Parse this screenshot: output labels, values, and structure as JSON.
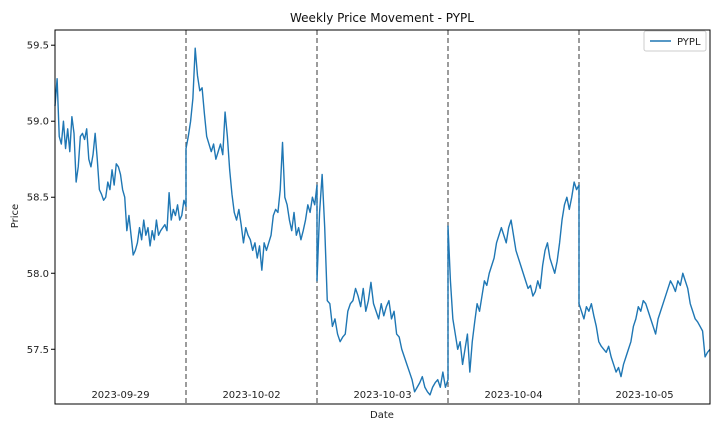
{
  "chart_data": {
    "type": "line",
    "title": "Weekly Price Movement - PYPL",
    "xlabel": "Date",
    "ylabel": "Price",
    "ylim": [
      57.14,
      59.6
    ],
    "y_ticks": [
      57.5,
      58.0,
      58.5,
      59.0,
      59.5
    ],
    "y_tick_labels": [
      "57.5",
      "58.0",
      "58.5",
      "59.0",
      "59.5"
    ],
    "grid": false,
    "legend": {
      "position": "top-right",
      "entries": [
        "PYPL"
      ]
    },
    "days": [
      "2023-09-29",
      "2023-10-02",
      "2023-10-03",
      "2023-10-04",
      "2023-10-05"
    ],
    "day_separators": "dashed",
    "series": [
      {
        "name": "PYPL",
        "color": "#1f77b4",
        "segments": [
          [
            59.1,
            59.28,
            58.9,
            58.85,
            59.0,
            58.82,
            58.95,
            58.8,
            59.03,
            58.92,
            58.6,
            58.7,
            58.9,
            58.92,
            58.88,
            58.95,
            58.75,
            58.7,
            58.78,
            58.92,
            58.75,
            58.55,
            58.52,
            58.48,
            58.5,
            58.6,
            58.55,
            58.68,
            58.58,
            58.72,
            58.7,
            58.65,
            58.55,
            58.5,
            58.28,
            58.38,
            58.25,
            58.12,
            58.15,
            58.2,
            58.3,
            58.22,
            58.35,
            58.25,
            58.3,
            58.18,
            58.28,
            58.22,
            58.35,
            58.25,
            58.28,
            58.3,
            58.32,
            58.28,
            58.53,
            58.35,
            58.42,
            58.38,
            58.45,
            58.35,
            58.38,
            58.48,
            58.44
          ],
          [
            58.82,
            58.9,
            59.0,
            59.15,
            59.48,
            59.3,
            59.2,
            59.22,
            59.05,
            58.9,
            58.85,
            58.8,
            58.85,
            58.75,
            58.8,
            58.85,
            58.78,
            59.06,
            58.9,
            58.68,
            58.52,
            58.4,
            58.35,
            58.42,
            58.32,
            58.2,
            58.3,
            58.25,
            58.22,
            58.15,
            58.2,
            58.1,
            58.18,
            58.02,
            58.2,
            58.15,
            58.2,
            58.25,
            58.38,
            58.42,
            58.4,
            58.55,
            58.86,
            58.5,
            58.45,
            58.35,
            58.28,
            58.4,
            58.25,
            58.3,
            58.22,
            58.28,
            58.35,
            58.45,
            58.4,
            58.5,
            58.45,
            58.58
          ],
          [
            57.95,
            58.4,
            58.65,
            58.3,
            57.82,
            57.8,
            57.65,
            57.7,
            57.6,
            57.55,
            57.58,
            57.6,
            57.75,
            57.8,
            57.82,
            57.9,
            57.85,
            57.78,
            57.9,
            57.75,
            57.82,
            57.94,
            57.8,
            57.75,
            57.7,
            57.8,
            57.72,
            57.78,
            57.82,
            57.7,
            57.75,
            57.6,
            57.58,
            57.5,
            57.45,
            57.4,
            57.35,
            57.3,
            57.22,
            57.25,
            57.28,
            57.32,
            57.25,
            57.22,
            57.2,
            57.25,
            57.28,
            57.3,
            57.25,
            57.35,
            57.25,
            57.3
          ],
          [
            58.31,
            57.95,
            57.7,
            57.6,
            57.5,
            57.55,
            57.4,
            57.5,
            57.6,
            57.35,
            57.55,
            57.68,
            57.8,
            57.75,
            57.85,
            57.95,
            57.92,
            58.0,
            58.05,
            58.1,
            58.2,
            58.25,
            58.3,
            58.25,
            58.2,
            58.3,
            58.35,
            58.25,
            58.15,
            58.1,
            58.05,
            58.0,
            57.95,
            57.9,
            57.92,
            57.85,
            57.88,
            57.95,
            57.9,
            58.05,
            58.15,
            58.2,
            58.1,
            58.05,
            58.0,
            58.08,
            58.2,
            58.35,
            58.45,
            58.5,
            58.42,
            58.5,
            58.6,
            58.55,
            58.58
          ],
          [
            57.8,
            57.75,
            57.7,
            57.78,
            57.75,
            57.8,
            57.72,
            57.65,
            57.55,
            57.52,
            57.5,
            57.48,
            57.52,
            57.45,
            57.4,
            57.35,
            57.38,
            57.32,
            57.4,
            57.45,
            57.5,
            57.55,
            57.65,
            57.7,
            57.78,
            57.75,
            57.82,
            57.8,
            57.75,
            57.7,
            57.65,
            57.6,
            57.7,
            57.75,
            57.8,
            57.85,
            57.9,
            57.95,
            57.92,
            57.88,
            57.95,
            57.92,
            58.0,
            57.95,
            57.9,
            57.8,
            57.75,
            57.7,
            57.68,
            57.65,
            57.62,
            57.45,
            57.48,
            57.5
          ]
        ]
      }
    ]
  }
}
